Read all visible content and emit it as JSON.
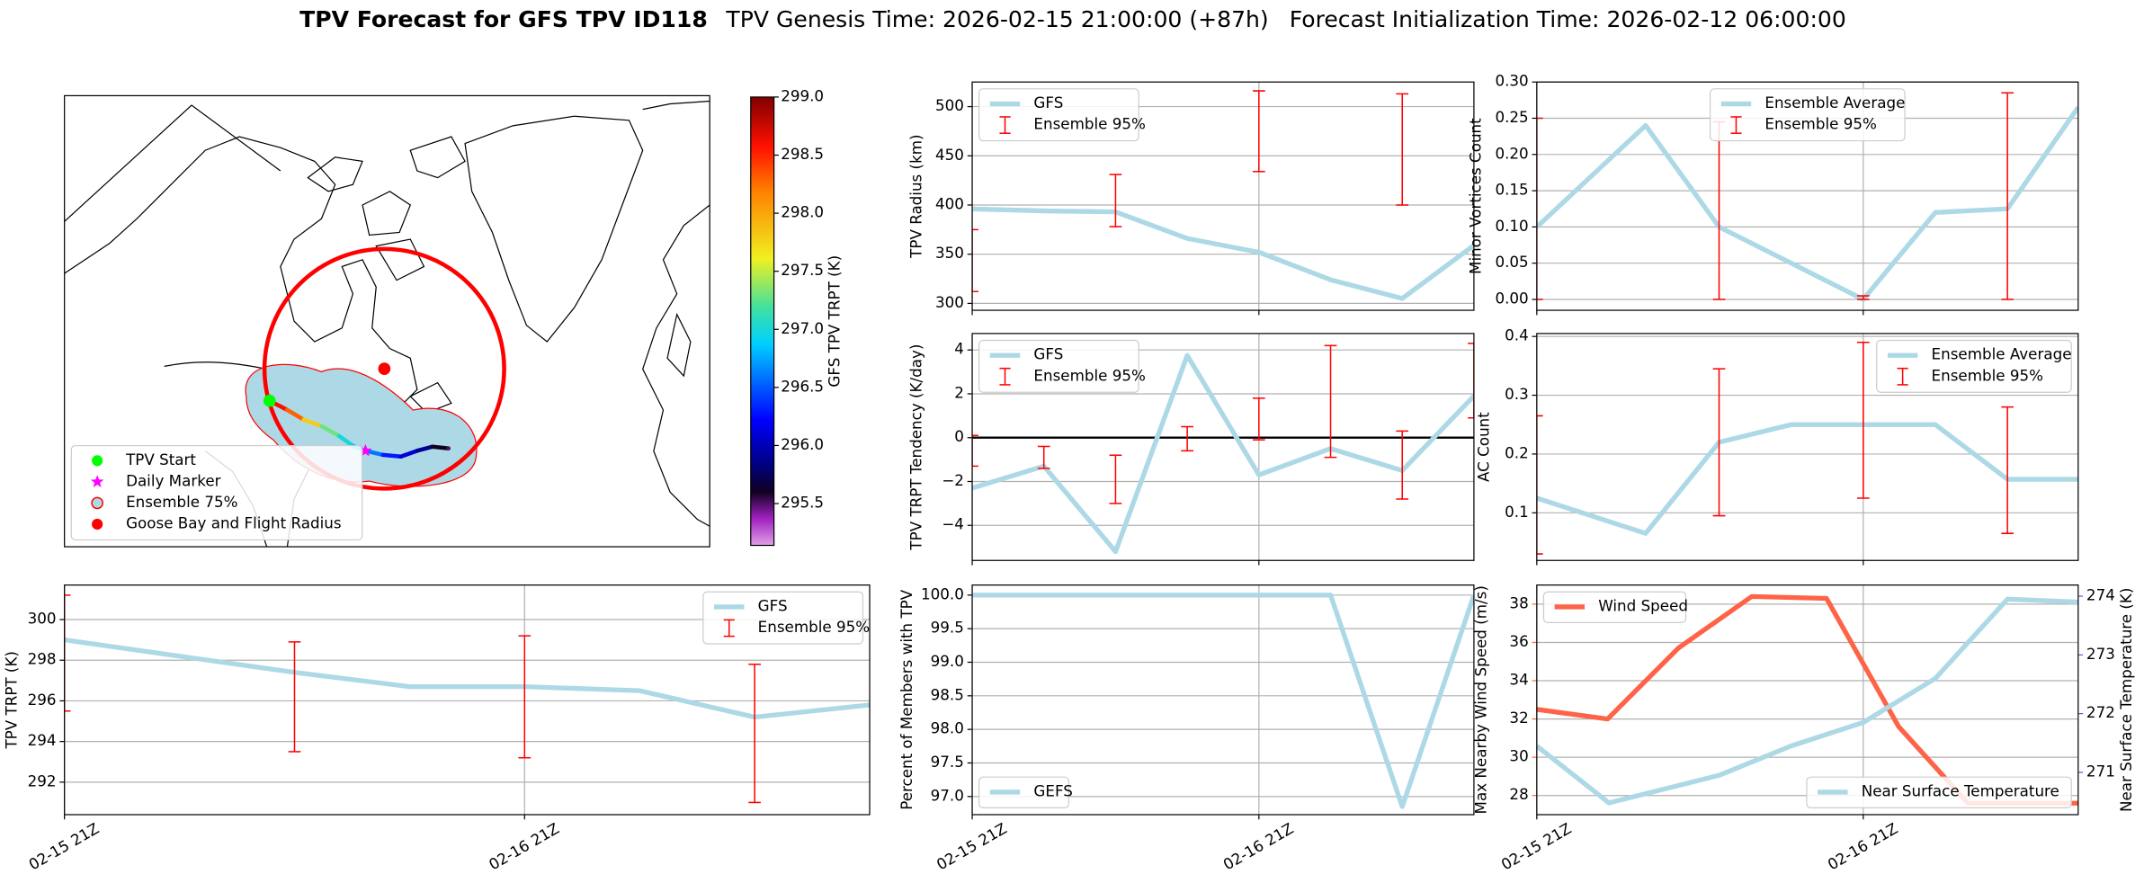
{
  "title": "TPV Forecast for GFS TPV ID118",
  "subtitle": [
    "TPV Genesis Time: 2026-02-15 21:00:00 (+87h)",
    "Forecast Initialization Time: 2026-02-12 06:00:00"
  ],
  "chart_data": [
    {
      "type": "map",
      "xlim": [
        -130,
        10
      ],
      "ylim": [
        32,
        87
      ],
      "legend": "lower left",
      "colorbar": {
        "label": "GFS TPV TRPT (K)",
        "lim": [
          295.14,
          299.0
        ],
        "ticks": [
          295.5,
          {
            "value": 296,
            "label": "296.0"
          },
          296.5,
          {
            "value": 297,
            "label": "297.0"
          },
          297.5,
          {
            "value": 298,
            "label": "298.0"
          },
          298.5,
          {
            "value": 299,
            "label": "299.0"
          }
        ]
      },
      "track": {
        "x": [
          -85.5,
          -81.7,
          -78.1,
          -74.2,
          -70.4,
          -67.4,
          -64.7,
          -60.9,
          -57.0,
          -53.5,
          -50.2,
          -46.7
        ],
        "y": [
          49.8,
          48.7,
          47.5,
          46.7,
          45.5,
          44.3,
          43.7,
          43.2,
          43.0,
          43.7,
          44.2,
          44.0
        ],
        "values": [
          298.6,
          298.3,
          297.8,
          297.3,
          297.0,
          296.8,
          296.6,
          296.3,
          296.1,
          295.9,
          295.6,
          295.5
        ]
      },
      "series": [
        {
          "name": "TPV Start",
          "color": "#00ff00",
          "marker": "circle",
          "x": [
            -85.5
          ],
          "y": [
            49.8
          ]
        },
        {
          "name": "Daily Marker",
          "color": "#ff00ff",
          "marker": "star",
          "x": [
            -64.7
          ],
          "y": [
            43.7
          ]
        },
        {
          "name": "Ensemble 75%",
          "color": "#add8e6",
          "edgecolor": "#ff0000",
          "marker": "circle"
        },
        {
          "name": "Goose Bay and Flight Radius",
          "color": "#ff0000",
          "marker": "circle",
          "x": [
            -60.6
          ],
          "y": [
            53.7
          ],
          "radius": 26
        }
      ]
    },
    {
      "type": "line",
      "ylabel": "TPV TRPT (K)",
      "xlim": [
        0,
        42
      ],
      "ylim": [
        290.4,
        301.7
      ],
      "yticks": [
        292,
        294,
        296,
        298,
        300
      ],
      "xticks": [
        {
          "value": 0,
          "label": "02-15 21Z"
        },
        {
          "value": 24,
          "label": "02-16 21Z"
        }
      ],
      "grid": true,
      "legend": "upper right",
      "series": [
        {
          "name": "GFS",
          "type": "line",
          "color": "#add8e6",
          "x": [
            0,
            6,
            12,
            18,
            24,
            30,
            36,
            42
          ],
          "values": [
            299.0,
            298.2,
            297.4,
            296.7,
            296.7,
            296.5,
            295.2,
            295.8
          ]
        },
        {
          "name": "Ensemble 95%",
          "type": "errorbar",
          "color": "#ff0000",
          "x": [
            0,
            6,
            12,
            18,
            24,
            30,
            36,
            42
          ],
          "low": [
            295.5,
            null,
            293.5,
            null,
            293.2,
            null,
            291.0,
            null
          ],
          "high": [
            301.2,
            null,
            298.9,
            null,
            299.2,
            null,
            297.8,
            null
          ]
        }
      ]
    },
    {
      "type": "line",
      "ylabel": "TPV Radius (km)",
      "xlim": [
        0,
        42
      ],
      "ylim": [
        293,
        525
      ],
      "yticks": [
        300,
        350,
        400,
        450,
        500
      ],
      "xticks": [
        0,
        24
      ],
      "grid": true,
      "legend": "upper left",
      "series": [
        {
          "name": "GFS",
          "type": "line",
          "color": "#add8e6",
          "x": [
            0,
            6,
            12,
            18,
            24,
            30,
            36,
            42
          ],
          "values": [
            396,
            394,
            393,
            366,
            352,
            324,
            305,
            359
          ]
        },
        {
          "name": "Ensemble 95%",
          "type": "errorbar",
          "color": "#ff0000",
          "x": [
            0,
            6,
            12,
            18,
            24,
            30,
            36,
            42
          ],
          "low": [
            312,
            null,
            378,
            null,
            434,
            null,
            400,
            null
          ],
          "high": [
            375,
            null,
            431,
            null,
            516,
            null,
            513,
            null
          ]
        }
      ]
    },
    {
      "type": "line",
      "ylabel": "TPV TRPT Tendency (K/day)",
      "xlim": [
        0,
        42
      ],
      "ylim": [
        -5.6,
        4.75
      ],
      "yticks": [
        {
          "value": -4,
          "label": "−4"
        },
        {
          "value": -2,
          "label": "−2"
        },
        0,
        2,
        4
      ],
      "xticks": [
        0,
        24
      ],
      "grid": true,
      "legend": "upper left",
      "zero_line": 0,
      "series": [
        {
          "name": "GFS",
          "type": "line",
          "color": "#add8e6",
          "x": [
            0,
            6,
            12,
            18,
            24,
            30,
            36,
            42
          ],
          "values": [
            -2.3,
            -1.3,
            -5.2,
            3.75,
            -1.7,
            -0.5,
            -1.5,
            1.9
          ]
        },
        {
          "name": "Ensemble 95%",
          "type": "errorbar",
          "color": "#ff0000",
          "x": [
            0,
            6,
            12,
            18,
            24,
            30,
            36,
            42
          ],
          "low": [
            -1.3,
            -1.4,
            -3.0,
            -0.6,
            -0.1,
            -0.9,
            -2.8,
            0.9
          ],
          "high": [
            0.1,
            -0.4,
            -0.8,
            0.5,
            1.8,
            4.2,
            0.3,
            4.3
          ]
        }
      ]
    },
    {
      "type": "line",
      "ylabel": "Percent of Members with TPV",
      "xlim": [
        0,
        42
      ],
      "ylim": [
        96.73,
        100.15
      ],
      "yticks": [
        {
          "value": 97,
          "label": "97.0"
        },
        97.5,
        {
          "value": 98,
          "label": "98.0"
        },
        98.5,
        {
          "value": 99,
          "label": "99.0"
        },
        99.5,
        {
          "value": 100,
          "label": "100.0"
        }
      ],
      "xticks": [
        {
          "value": 0,
          "label": "02-15 21Z"
        },
        {
          "value": 24,
          "label": "02-16 21Z"
        }
      ],
      "grid": true,
      "legend": "lower left",
      "series": [
        {
          "name": "GEFS",
          "type": "line",
          "color": "#add8e6",
          "x": [
            0,
            6,
            12,
            18,
            24,
            30,
            36,
            42
          ],
          "values": [
            100,
            100,
            100,
            100,
            100,
            100,
            96.85,
            100
          ]
        }
      ]
    },
    {
      "type": "line",
      "ylabel": "Minor Vortices Count",
      "xlim": [
        0,
        39.8
      ],
      "ylim": [
        -0.015,
        0.3
      ],
      "yticks": [
        {
          "value": 0,
          "label": "0.00"
        },
        0.05,
        {
          "value": 0.1,
          "label": "0.10"
        },
        0.15,
        {
          "value": 0.2,
          "label": "0.20"
        },
        0.25,
        {
          "value": 0.3,
          "label": "0.30"
        }
      ],
      "xticks": [
        0,
        24
      ],
      "grid": true,
      "legend": "upper center",
      "series": [
        {
          "name": "Ensemble Average",
          "type": "line",
          "color": "#add8e6",
          "x": [
            0,
            8,
            13.4,
            18.7,
            24,
            29.3,
            34.6,
            39.8
          ],
          "values": [
            0.1,
            0.24,
            0.1,
            0.05,
            0.0,
            0.12,
            0.125,
            0.265
          ]
        },
        {
          "name": "Ensemble 95%",
          "type": "errorbar",
          "color": "#ff0000",
          "x": [
            0,
            8,
            13.4,
            18.7,
            24,
            29.3,
            34.6,
            39.8
          ],
          "low": [
            0,
            null,
            0,
            null,
            0,
            null,
            0,
            null
          ],
          "high": [
            0.25,
            null,
            0.245,
            null,
            0.005,
            null,
            0.285,
            null
          ]
        }
      ]
    },
    {
      "type": "line",
      "ylabel": "AC Count",
      "xlim": [
        0,
        39.8
      ],
      "ylim": [
        0.019,
        0.405
      ],
      "yticks": [
        0.1,
        0.2,
        0.3,
        0.4
      ],
      "xticks": [
        0,
        24
      ],
      "grid": true,
      "legend": "upper right",
      "series": [
        {
          "name": "Ensemble Average",
          "type": "line",
          "color": "#add8e6",
          "x": [
            0,
            8,
            13.4,
            18.7,
            24,
            29.3,
            34.6,
            39.8
          ],
          "values": [
            0.125,
            0.065,
            0.22,
            0.25,
            0.25,
            0.25,
            0.157,
            0.157
          ]
        },
        {
          "name": "Ensemble 95%",
          "type": "errorbar",
          "color": "#ff0000",
          "x": [
            0,
            8,
            13.4,
            18.7,
            24,
            29.3,
            34.6,
            39.8
          ],
          "low": [
            0.03,
            null,
            0.095,
            null,
            0.125,
            null,
            0.065,
            null
          ],
          "high": [
            0.265,
            null,
            0.345,
            null,
            0.39,
            null,
            0.28,
            null
          ]
        }
      ]
    },
    {
      "type": "line",
      "ylabel": "Max Nearby Wind Speed (m/s)",
      "y2label": "Near Surface Temperature (K)",
      "xlim": [
        0,
        39.8
      ],
      "ylim": [
        27.0,
        39.0
      ],
      "yticks": [
        28,
        30,
        32,
        34,
        36,
        38
      ],
      "y2lim": [
        270.28,
        274.19
      ],
      "y2ticks": [
        271,
        272,
        273,
        274
      ],
      "xticks": [
        {
          "value": 0,
          "label": "02-15 21Z"
        },
        {
          "value": 24,
          "label": "02-16 21Z"
        }
      ],
      "grid": true,
      "series": [
        {
          "name": "Wind Speed",
          "type": "line",
          "color": "#ff6347",
          "legend": "upper left",
          "x": [
            0,
            5.2,
            10.4,
            15.8,
            21.3,
            26.6,
            31.7,
            39.8
          ],
          "values": [
            32.5,
            32.0,
            35.7,
            38.4,
            38.3,
            31.6,
            27.6,
            27.6
          ]
        },
        {
          "name": "Near Surface Temperature",
          "type": "line",
          "axis": "y2",
          "color": "#add8e6",
          "legend": "lower right",
          "x": [
            0,
            5.3,
            13.4,
            18.7,
            24,
            29.3,
            34.6,
            39.8
          ],
          "values": [
            271.45,
            270.48,
            270.95,
            271.45,
            271.85,
            272.6,
            273.95,
            273.9
          ]
        }
      ]
    }
  ]
}
